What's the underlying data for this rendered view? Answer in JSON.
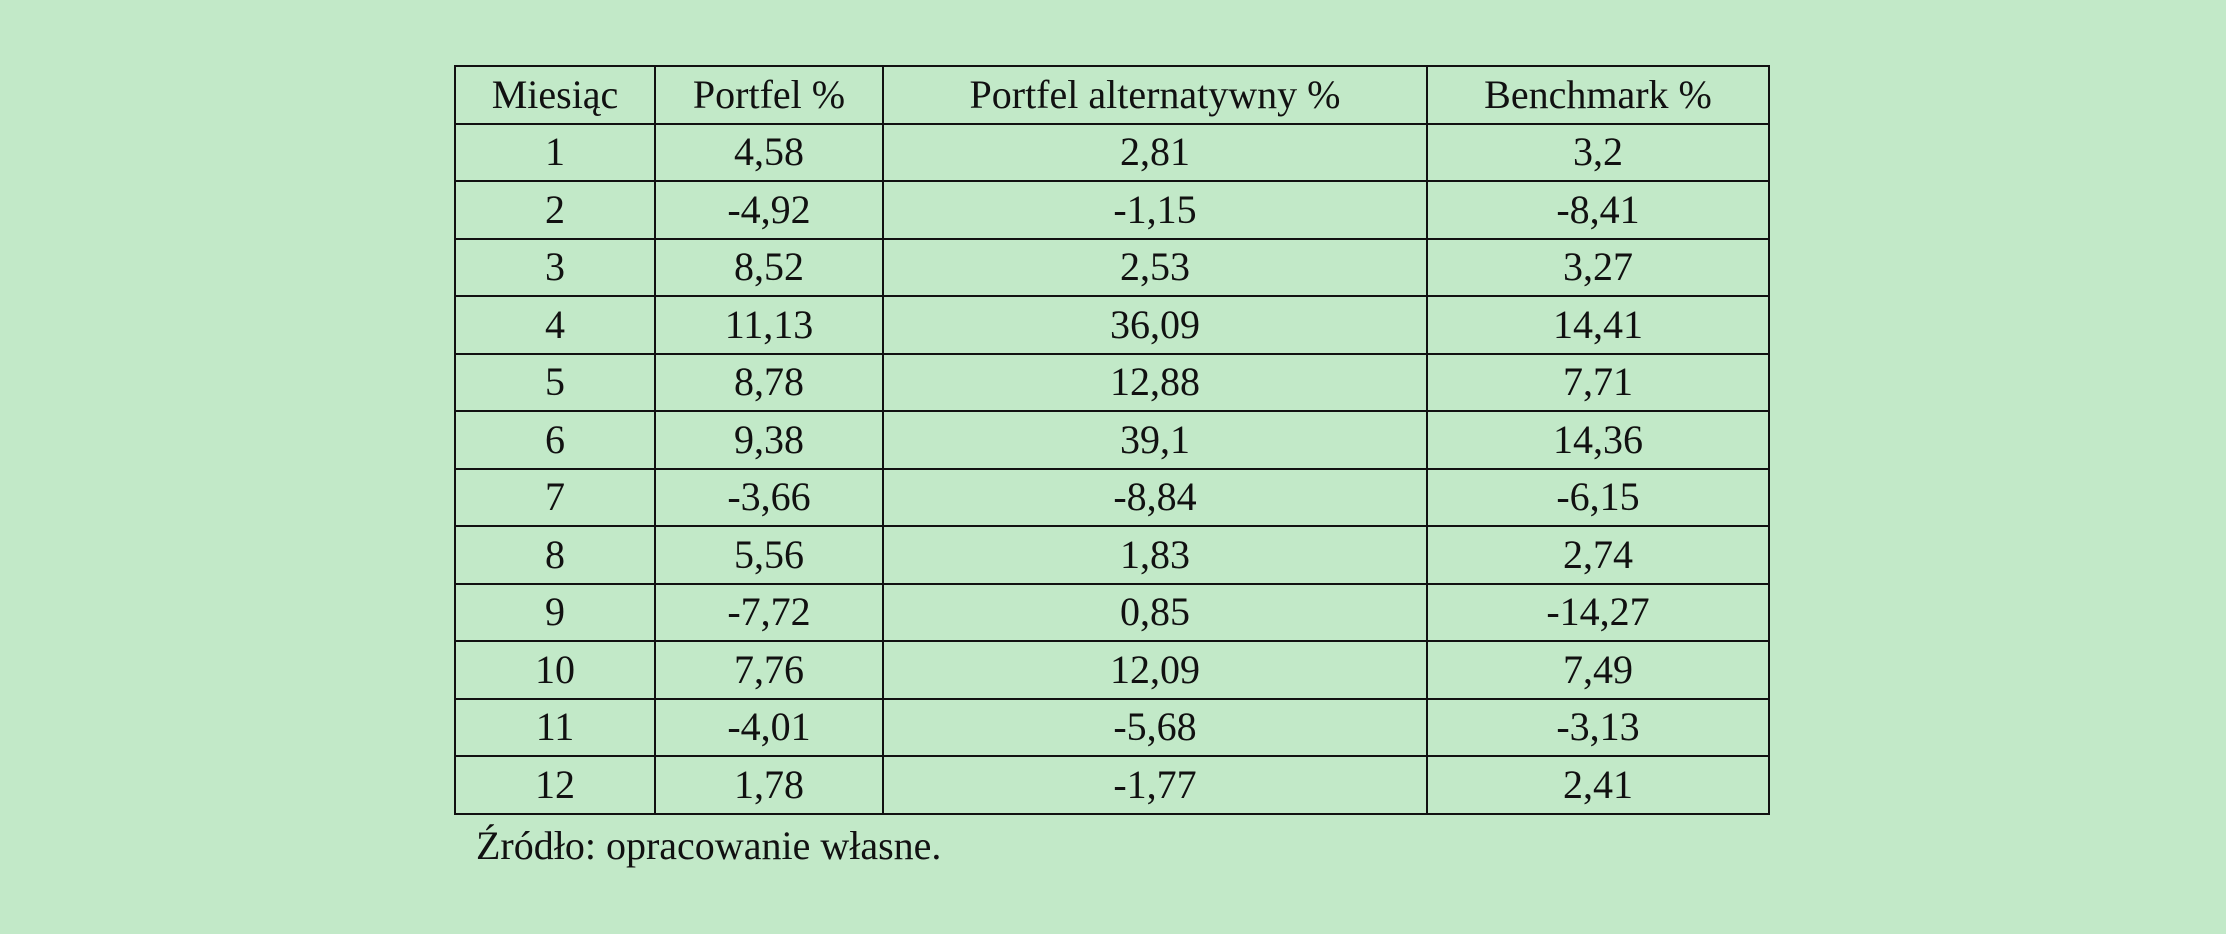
{
  "table": {
    "headers": [
      "Miesiąc",
      "Portfel %",
      "Portfel alternatywny %",
      "Benchmark %"
    ],
    "rows": [
      [
        "1",
        "4,58",
        "2,81",
        "3,2"
      ],
      [
        "2",
        "-4,92",
        "-1,15",
        "-8,41"
      ],
      [
        "3",
        "8,52",
        "2,53",
        "3,27"
      ],
      [
        "4",
        "11,13",
        "36,09",
        "14,41"
      ],
      [
        "5",
        "8,78",
        "12,88",
        "7,71"
      ],
      [
        "6",
        "9,38",
        "39,1",
        "14,36"
      ],
      [
        "7",
        "-3,66",
        "-8,84",
        "-6,15"
      ],
      [
        "8",
        "5,56",
        "1,83",
        "2,74"
      ],
      [
        "9",
        "-7,72",
        "0,85",
        "-14,27"
      ],
      [
        "10",
        "7,76",
        "12,09",
        "7,49"
      ],
      [
        "11",
        "-4,01",
        "-5,68",
        "-3,13"
      ],
      [
        "12",
        "1,78",
        "-1,77",
        "2,41"
      ]
    ]
  },
  "caption": "Źródło: opracowanie własne.",
  "colors": {
    "background": "#c2e9c8",
    "text": "#111111"
  }
}
